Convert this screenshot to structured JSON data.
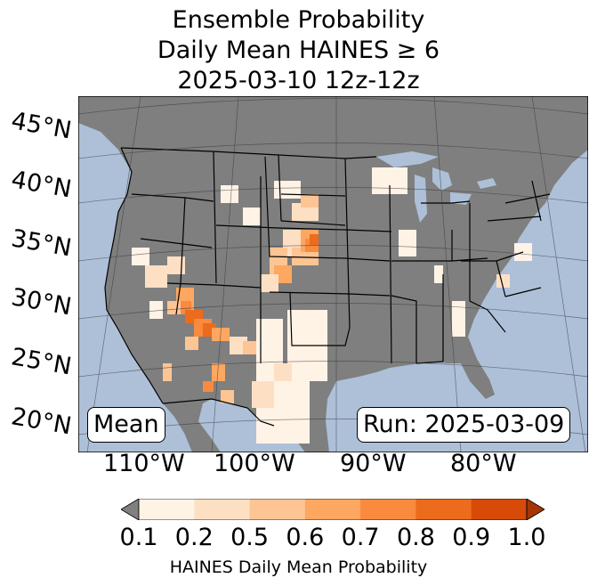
{
  "title": {
    "line1": "Ensemble Probability",
    "line2": "Daily Mean HAINES ≥ 6",
    "line3": "2025-03-10 12z-12z"
  },
  "map": {
    "ocean_color": "#adc0d8",
    "land_color": "#7f7f7f",
    "lat_labels": [
      "45°N",
      "40°N",
      "35°N",
      "30°N",
      "25°N",
      "20°N"
    ],
    "lon_labels": [
      "110°W",
      "100°W",
      "90°W",
      "80°W"
    ],
    "mean_label": "Mean",
    "run_label": "Run: 2025-03-09"
  },
  "colorbar": {
    "label": "HAINES Daily Mean Probability",
    "ticks": [
      "0.1",
      "0.2",
      "0.5",
      "0.6",
      "0.7",
      "0.8",
      "0.9",
      "1.0"
    ],
    "under_color": "#808080",
    "colors": [
      "#fff3e6",
      "#fde0c4",
      "#fdc594",
      "#fda761",
      "#f98a3e",
      "#ec6b1c",
      "#d74a08"
    ],
    "over_color": "#a53603"
  }
}
